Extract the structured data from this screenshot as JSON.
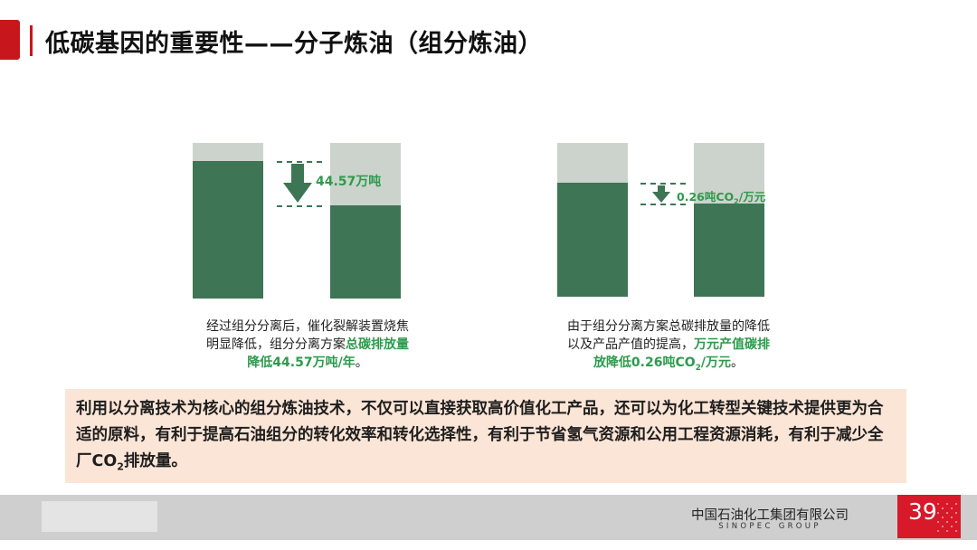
{
  "title": "低碳基因的重要性——分子炼油（组分炼油）",
  "left_chart": {
    "annotation": "44.57万吨",
    "caption": {
      "line1": "经过组分分离后，催化裂解装置烧焦",
      "line2_plain": "明显降低，组分分离方案",
      "line2_bold": "总碳排放量",
      "line3_bold": "降低44.57万吨/年",
      "line3_end": "。"
    }
  },
  "right_chart": {
    "annotation_pre": "0.26吨CO",
    "annotation_sub": "2",
    "annotation_post": "/万元",
    "caption": {
      "line1": "由于组分分离方案总碳排放量的降低",
      "line2_plain": "以及产品产值的提高，",
      "line2_bold": "万元产值碳排",
      "line3_bold_pre": "放降低0.26吨CO",
      "line3_sub": "2",
      "line3_bold_post": "/万元",
      "line3_end": "。"
    }
  },
  "summary": {
    "text_pre": "利用以分离技术为核心的组分炼油技术，不仅可以直接获取高价值化工产品，还可以为化工转型关键技术提供更为合适的原料，有利于提高石油组分的转化效率和转化选择性，有利于节省氢气资源和公用工程资源消耗，有利于减少全厂CO",
    "text_sub": "2",
    "text_post": "排放量。"
  },
  "footer": {
    "company_cn": "中国石油化工集团有限公司",
    "company_en": "SINOPEC GROUP",
    "page_number": "39"
  },
  "colors": {
    "accent_red": "#c8161d",
    "bar_dark": "#3e7554",
    "bar_light": "#ccd3cc",
    "highlight_green": "#2e9a4c",
    "summary_bg": "#fbe5d6"
  }
}
